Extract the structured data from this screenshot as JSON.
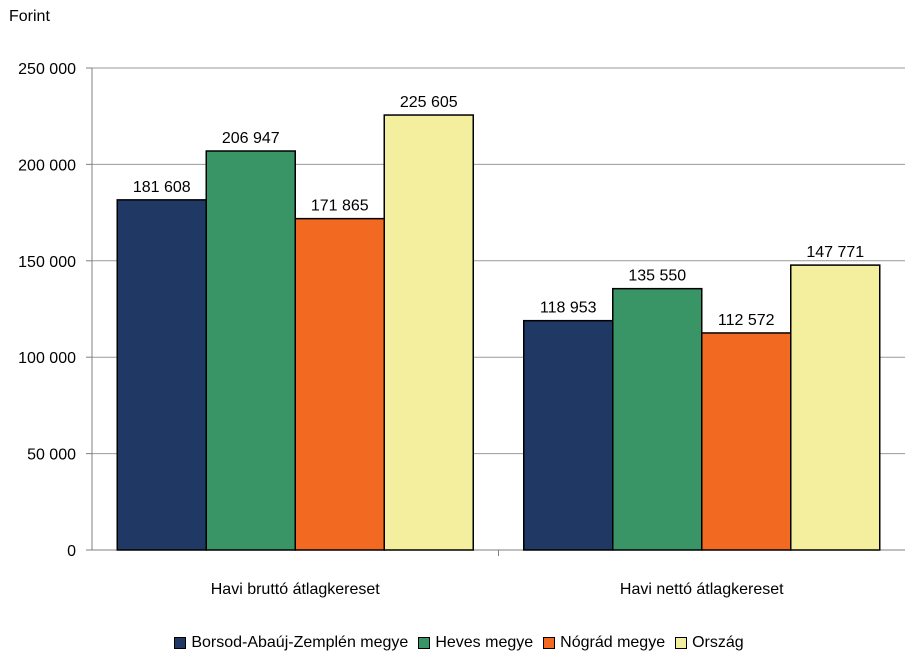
{
  "chart_data": {
    "type": "bar",
    "unit_label": "Forint",
    "categories": [
      "Havi bruttó átlagkereset",
      "Havi nettó átlagkereset"
    ],
    "series": [
      {
        "name": "Borsod-Abaúj-Zemplén megye",
        "color": "#1f3864",
        "values": [
          181608,
          118953
        ],
        "labels": [
          "181 608",
          "118 953"
        ]
      },
      {
        "name": "Heves megye",
        "color": "#3a9566",
        "values": [
          206947,
          135550
        ],
        "labels": [
          "206 947",
          "135 550"
        ]
      },
      {
        "name": "Nógrád megye",
        "color": "#f26a21",
        "values": [
          171865,
          112572
        ],
        "labels": [
          "171 865",
          "112 572"
        ]
      },
      {
        "name": "Ország",
        "color": "#f3ef9f",
        "values": [
          225605,
          147771
        ],
        "labels": [
          "225 605",
          "147 771"
        ]
      }
    ],
    "ylim": [
      0,
      250000
    ],
    "yticks": [
      0,
      50000,
      100000,
      150000,
      200000,
      250000
    ],
    "ytick_labels": [
      "0",
      "50 000",
      "100 000",
      "150 000",
      "200 000",
      "250 000"
    ],
    "grid": true,
    "legend_position": "bottom"
  }
}
